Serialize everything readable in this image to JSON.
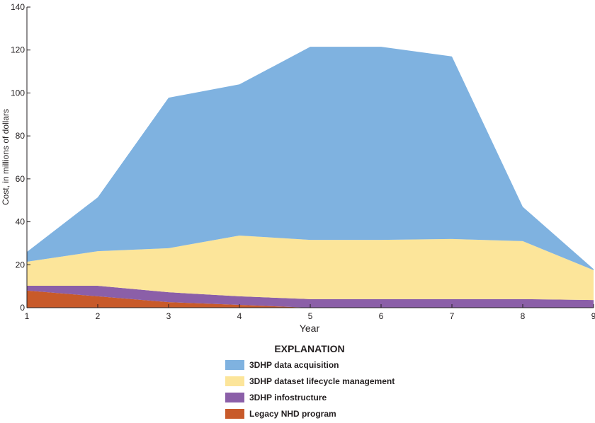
{
  "chart_data": {
    "type": "stacked-area",
    "x": [
      1,
      2,
      3,
      4,
      5,
      6,
      7,
      8,
      9
    ],
    "xlabel": "Year",
    "ylabel": "Cost, in millions of dollars",
    "xlim": [
      1,
      9
    ],
    "xticks": [
      1,
      2,
      3,
      4,
      5,
      6,
      7,
      8,
      9
    ],
    "ylim": [
      0,
      140
    ],
    "yticks": [
      0,
      20,
      40,
      60,
      80,
      100,
      120,
      140
    ],
    "legend_title": "EXPLANATION",
    "series": [
      {
        "name": "3DHP data acquisition",
        "color": "#7fb2e0",
        "values": [
          4.6,
          25.1,
          70.1,
          70.4,
          89.9,
          89.9,
          85,
          16,
          0.5
        ]
      },
      {
        "name": "3DHP dataset lifecycle management",
        "color": "#fce59a",
        "values": [
          11.2,
          16.1,
          20.5,
          28.3,
          27.6,
          27.6,
          28,
          27,
          13.9
        ]
      },
      {
        "name": "3DHP infostructure",
        "color": "#8b5fa8",
        "values": [
          2.2,
          4.9,
          4.6,
          4,
          4,
          4,
          4,
          4,
          3.6
        ]
      },
      {
        "name": "Legacy NHD program",
        "color": "#c85a2a",
        "values": [
          8,
          5.3,
          2.6,
          1.3,
          0,
          0,
          0,
          0,
          0
        ]
      }
    ]
  }
}
